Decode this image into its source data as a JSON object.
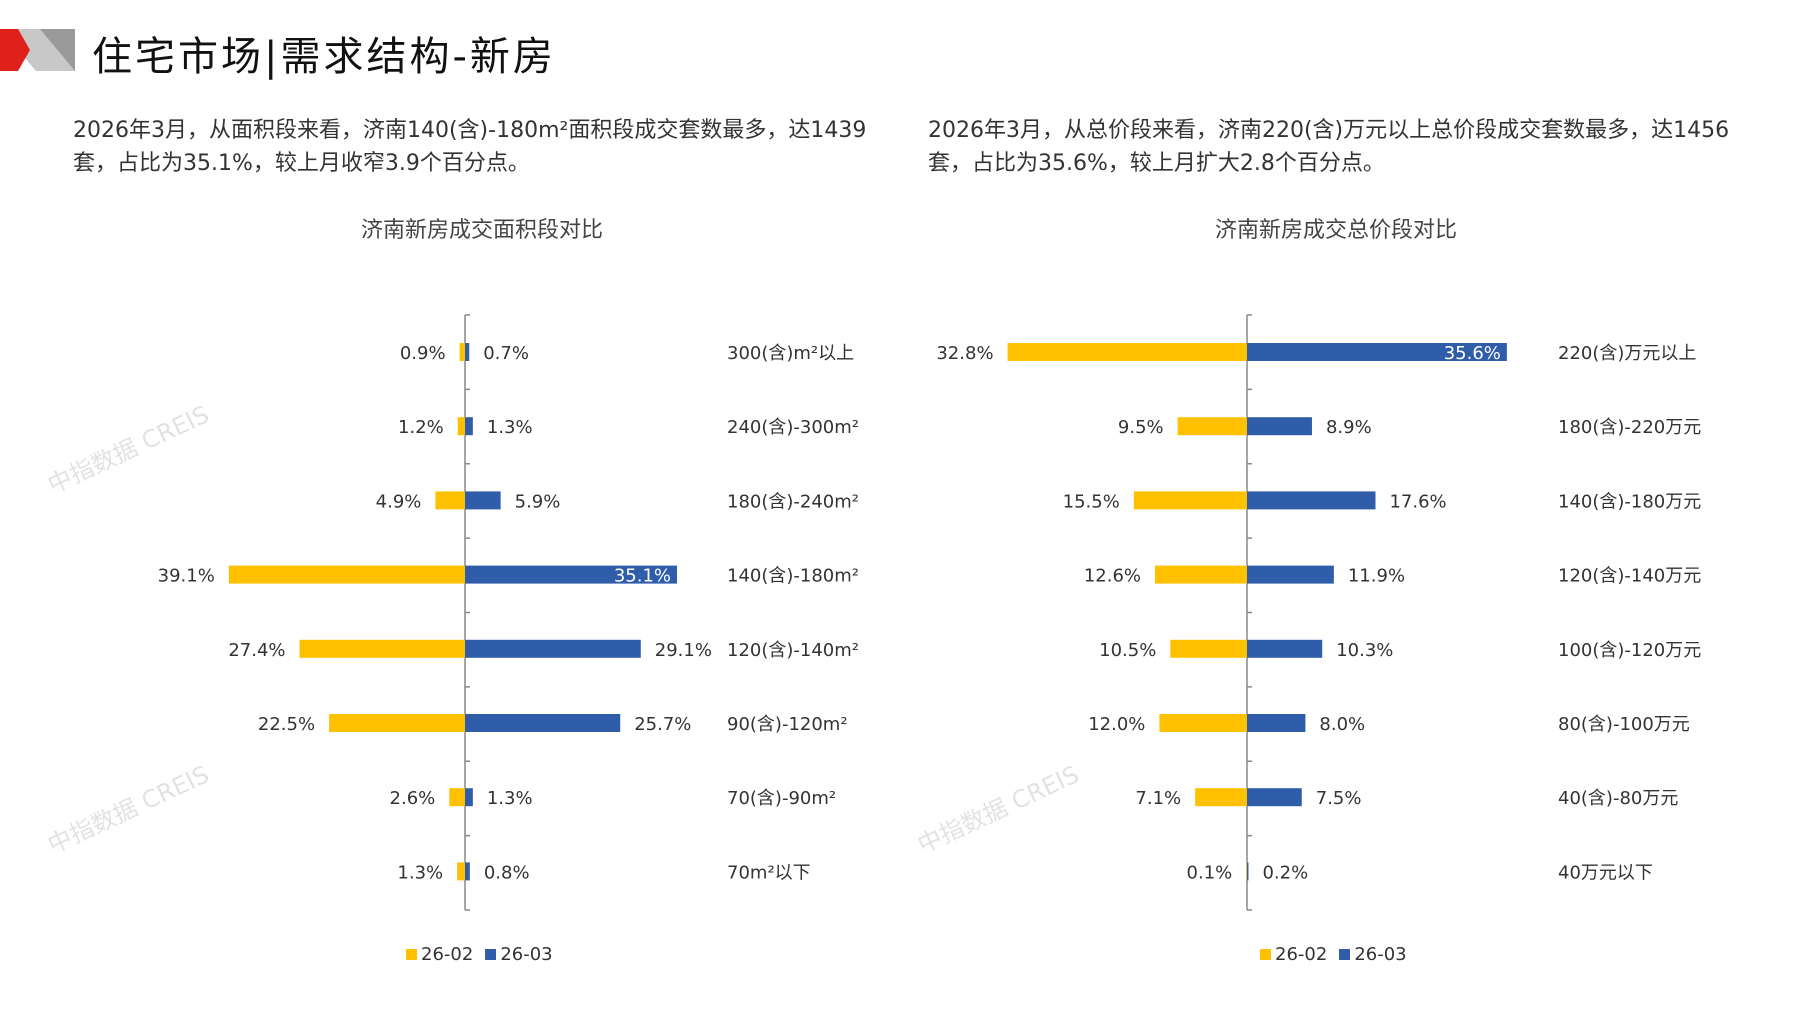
{
  "header": {
    "title": "住宅市场|需求结构-新房"
  },
  "left": {
    "paragraph": "2026年3月，从面积段来看，济南140(含)-180m²面积段成交套数最多，达1439套，占比为35.1%，较上月收窄3.9个百分点。"
  },
  "right": {
    "paragraph": "2026年3月，从总价段来看，济南220(含)万元以上总价段成交套数最多，达1456套，占比为35.6%，较上月扩大2.8个百分点。"
  },
  "watermark": "中指数据 CREIS",
  "colors": {
    "prev": "#FFC000",
    "curr": "#2F5DAA",
    "accent": "#E0201B"
  },
  "chart_data": [
    {
      "type": "bar",
      "orientation": "horizontal-butterfly",
      "title": "济南新房成交面积段对比",
      "categories": [
        "300(含)m²以上",
        "240(含)-300m²",
        "180(含)-240m²",
        "140(含)-180m²",
        "120(含)-140m²",
        "90(含)-120m²",
        "70(含)-90m²",
        "70m²以下"
      ],
      "series": [
        {
          "name": "26-02",
          "values": [
            0.9,
            1.2,
            4.9,
            39.1,
            27.4,
            22.5,
            2.6,
            1.3
          ],
          "labels": [
            "0.9%",
            "1.2%",
            "4.9%",
            "39.1%",
            "27.4%",
            "22.5%",
            "2.6%",
            "1.3%"
          ]
        },
        {
          "name": "26-03",
          "values": [
            0.7,
            1.3,
            5.9,
            35.1,
            29.1,
            25.7,
            1.3,
            0.8
          ],
          "labels": [
            "0.7%",
            "1.3%",
            "5.9%",
            "35.1%",
            "29.1%",
            "25.7%",
            "1.3%",
            "0.8%"
          ]
        }
      ],
      "legend": "bottom"
    },
    {
      "type": "bar",
      "orientation": "horizontal-butterfly",
      "title": "济南新房成交总价段对比",
      "categories": [
        "220(含)万元以上",
        "180(含)-220万元",
        "140(含)-180万元",
        "120(含)-140万元",
        "100(含)-120万元",
        "80(含)-100万元",
        "40(含)-80万元",
        "40万元以下"
      ],
      "series": [
        {
          "name": "26-02",
          "values": [
            32.8,
            9.5,
            15.5,
            12.6,
            10.5,
            12.0,
            7.1,
            0.1
          ],
          "labels": [
            "32.8%",
            "9.5%",
            "15.5%",
            "12.6%",
            "10.5%",
            "12.0%",
            "7.1%",
            "0.1%"
          ]
        },
        {
          "name": "26-03",
          "values": [
            35.6,
            8.9,
            17.6,
            11.9,
            10.3,
            8.0,
            7.5,
            0.2
          ],
          "labels": [
            "35.6%",
            "8.9%",
            "17.6%",
            "11.9%",
            "10.3%",
            "8.0%",
            "7.5%",
            "0.2%"
          ]
        }
      ],
      "legend": "bottom"
    }
  ]
}
